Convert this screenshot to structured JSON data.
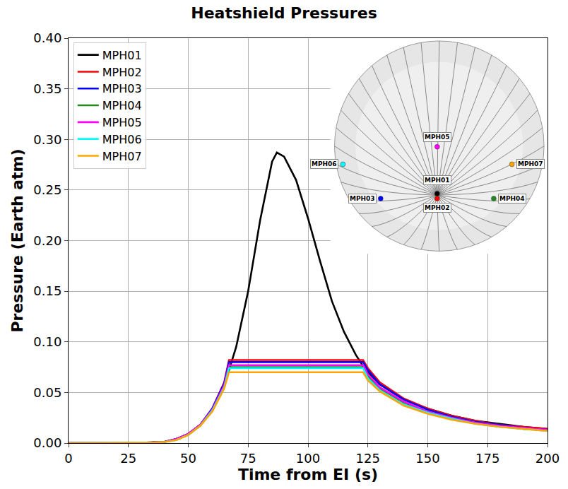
{
  "chart_data": {
    "type": "line",
    "title": "Heatshield Pressures",
    "x_label": "Time from EI (s)",
    "y_label": "Pressure (Earth atm)",
    "x": [
      0,
      10,
      20,
      30,
      35,
      40,
      45,
      50,
      55,
      60,
      65,
      67,
      70,
      75,
      80,
      85,
      87,
      90,
      95,
      100,
      105,
      110,
      115,
      120,
      123,
      125,
      130,
      140,
      150,
      160,
      170,
      180,
      190,
      200
    ],
    "series": [
      {
        "name": "MPH01",
        "color": "#000000",
        "values": [
          0,
          0,
          0,
          0.0003,
          0.0006,
          0.001,
          0.004,
          0.009,
          0.018,
          0.033,
          0.058,
          0.072,
          0.095,
          0.15,
          0.22,
          0.278,
          0.287,
          0.283,
          0.26,
          0.222,
          0.18,
          0.14,
          0.11,
          0.087,
          0.076,
          0.07,
          0.058,
          0.043,
          0.034,
          0.027,
          0.022,
          0.019,
          0.016,
          0.014
        ]
      },
      {
        "name": "MPH02",
        "color": "#ff0000",
        "values": [
          0,
          0,
          0,
          0.0003,
          0.0006,
          0.0012,
          0.004,
          0.009,
          0.018,
          0.034,
          0.06,
          0.082,
          0.082,
          0.082,
          0.082,
          0.082,
          0.082,
          0.082,
          0.082,
          0.082,
          0.082,
          0.082,
          0.082,
          0.082,
          0.082,
          0.074,
          0.06,
          0.044,
          0.034,
          0.027,
          0.022,
          0.018,
          0.016,
          0.014
        ]
      },
      {
        "name": "MPH03",
        "color": "#0000ff",
        "values": [
          0,
          0,
          0,
          0.0003,
          0.0006,
          0.0012,
          0.004,
          0.009,
          0.018,
          0.034,
          0.059,
          0.08,
          0.08,
          0.08,
          0.08,
          0.08,
          0.08,
          0.08,
          0.08,
          0.08,
          0.08,
          0.08,
          0.08,
          0.08,
          0.08,
          0.072,
          0.058,
          0.043,
          0.033,
          0.026,
          0.021,
          0.018,
          0.015,
          0.013
        ]
      },
      {
        "name": "MPH04",
        "color": "#228b22",
        "values": [
          0,
          0,
          0,
          0.0003,
          0.0006,
          0.0011,
          0.004,
          0.009,
          0.017,
          0.032,
          0.056,
          0.075,
          0.075,
          0.075,
          0.075,
          0.075,
          0.075,
          0.075,
          0.075,
          0.075,
          0.075,
          0.075,
          0.075,
          0.075,
          0.075,
          0.066,
          0.054,
          0.04,
          0.031,
          0.025,
          0.02,
          0.017,
          0.014,
          0.013
        ]
      },
      {
        "name": "MPH05",
        "color": "#ff00ff",
        "values": [
          0,
          0,
          0,
          0.0003,
          0.0006,
          0.0011,
          0.004,
          0.009,
          0.018,
          0.033,
          0.057,
          0.077,
          0.077,
          0.077,
          0.077,
          0.077,
          0.077,
          0.077,
          0.077,
          0.077,
          0.077,
          0.077,
          0.077,
          0.077,
          0.077,
          0.068,
          0.055,
          0.041,
          0.031,
          0.025,
          0.02,
          0.017,
          0.015,
          0.013
        ]
      },
      {
        "name": "MPH06",
        "color": "#00ffff",
        "values": [
          0,
          0,
          0,
          0.0002,
          0.0005,
          0.001,
          0.003,
          0.008,
          0.017,
          0.032,
          0.055,
          0.074,
          0.074,
          0.074,
          0.074,
          0.074,
          0.074,
          0.074,
          0.074,
          0.074,
          0.074,
          0.074,
          0.074,
          0.074,
          0.074,
          0.064,
          0.052,
          0.038,
          0.03,
          0.024,
          0.019,
          0.016,
          0.014,
          0.012
        ]
      },
      {
        "name": "MPH07",
        "color": "#ffa500",
        "values": [
          0,
          0,
          0,
          0.0002,
          0.0005,
          0.001,
          0.003,
          0.008,
          0.017,
          0.031,
          0.054,
          0.07,
          0.07,
          0.07,
          0.07,
          0.07,
          0.07,
          0.07,
          0.07,
          0.07,
          0.07,
          0.07,
          0.07,
          0.07,
          0.07,
          0.062,
          0.051,
          0.037,
          0.029,
          0.023,
          0.019,
          0.016,
          0.014,
          0.012
        ]
      }
    ],
    "xlim": [
      0,
      200
    ],
    "xticks": [
      0,
      25,
      50,
      75,
      100,
      125,
      150,
      175,
      200
    ],
    "ylim": [
      0,
      0.4
    ],
    "yticks": [
      {
        "value": 0,
        "label": "0.00"
      },
      {
        "value": 0.05,
        "label": "0.05"
      },
      {
        "value": 0.1,
        "label": "0.10"
      },
      {
        "value": 0.15,
        "label": "0.15"
      },
      {
        "value": 0.2,
        "label": "0.20"
      },
      {
        "value": 0.25,
        "label": "0.25"
      },
      {
        "value": 0.3,
        "label": "0.30"
      },
      {
        "value": 0.35,
        "label": "0.35"
      },
      {
        "value": 0.4,
        "label": "0.40"
      }
    ],
    "grid": true,
    "legend": "upper left"
  }
}
